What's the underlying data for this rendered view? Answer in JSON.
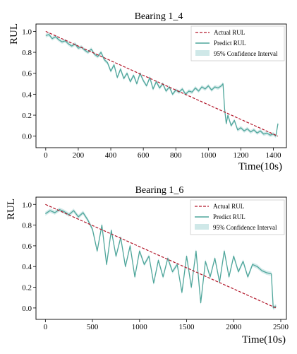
{
  "chart_data": [
    {
      "type": "line",
      "title": "Bearing 1_4",
      "xlabel": "Time(10s)",
      "ylabel": "RUL",
      "xlim": [
        -60,
        1480
      ],
      "ylim": [
        -0.11,
        1.07
      ],
      "xticks": [
        "0",
        "200",
        "400",
        "600",
        "800",
        "1000",
        "1200",
        "1400"
      ],
      "xtick_values": [
        0,
        200,
        400,
        600,
        800,
        1000,
        1200,
        1400
      ],
      "yticks": [
        "0.0",
        "0.2",
        "0.4",
        "0.6",
        "0.8",
        "1.0"
      ],
      "ytick_values": [
        0.0,
        0.2,
        0.4,
        0.6,
        0.8,
        1.0
      ],
      "legend": [
        "Actual RUL",
        "Predict RUL",
        "95% Confidence Interval"
      ],
      "legend_position": "top-right",
      "series": [
        {
          "name": "Actual RUL",
          "style": "dashed",
          "color": "#b2182b",
          "x": [
            0,
            1428
          ],
          "y": [
            1.0,
            0.0
          ]
        },
        {
          "name": "Predict RUL",
          "style": "solid",
          "color": "#4fa69b",
          "x": [
            0,
            20,
            40,
            60,
            80,
            100,
            120,
            140,
            160,
            180,
            200,
            220,
            240,
            260,
            280,
            300,
            320,
            340,
            360,
            380,
            400,
            420,
            440,
            460,
            480,
            500,
            520,
            540,
            560,
            580,
            600,
            620,
            640,
            660,
            680,
            700,
            720,
            740,
            760,
            780,
            800,
            820,
            840,
            860,
            880,
            900,
            920,
            940,
            960,
            980,
            1000,
            1020,
            1040,
            1060,
            1080,
            1090,
            1100,
            1110,
            1120,
            1140,
            1160,
            1180,
            1200,
            1220,
            1240,
            1260,
            1280,
            1300,
            1320,
            1340,
            1360,
            1380,
            1400,
            1415,
            1428
          ],
          "y": [
            0.96,
            0.97,
            0.93,
            0.95,
            0.92,
            0.9,
            0.91,
            0.88,
            0.86,
            0.88,
            0.84,
            0.85,
            0.82,
            0.8,
            0.83,
            0.78,
            0.76,
            0.8,
            0.73,
            0.7,
            0.62,
            0.68,
            0.56,
            0.64,
            0.55,
            0.6,
            0.52,
            0.58,
            0.5,
            0.6,
            0.53,
            0.48,
            0.56,
            0.45,
            0.52,
            0.46,
            0.5,
            0.43,
            0.47,
            0.4,
            0.44,
            0.42,
            0.45,
            0.4,
            0.43,
            0.42,
            0.46,
            0.43,
            0.47,
            0.45,
            0.48,
            0.44,
            0.47,
            0.46,
            0.48,
            0.5,
            0.26,
            0.12,
            0.2,
            0.1,
            0.15,
            0.06,
            0.08,
            0.05,
            0.07,
            0.04,
            0.06,
            0.03,
            0.05,
            0.02,
            0.03,
            0.01,
            0.02,
            0.0,
            0.12
          ]
        }
      ]
    },
    {
      "type": "line",
      "title": "Bearing 1_6",
      "xlabel": "Time(10s)",
      "ylabel": "RUL",
      "xlim": [
        -100,
        2560
      ],
      "ylim": [
        -0.11,
        1.07
      ],
      "xticks": [
        "0",
        "500",
        "1000",
        "1500",
        "2000",
        "2500"
      ],
      "xtick_values": [
        0,
        500,
        1000,
        1500,
        2000,
        2500
      ],
      "yticks": [
        "0.0",
        "0.2",
        "0.4",
        "0.6",
        "0.8",
        "1.0"
      ],
      "ytick_values": [
        0.0,
        0.2,
        0.4,
        0.6,
        0.8,
        1.0
      ],
      "legend": [
        "Actual RUL",
        "Predict RUL",
        "95% Confidence Interval"
      ],
      "legend_position": "top-right",
      "series": [
        {
          "name": "Actual RUL",
          "style": "dashed",
          "color": "#b2182b",
          "x": [
            0,
            2450
          ],
          "y": [
            1.0,
            0.0
          ]
        },
        {
          "name": "Predict RUL",
          "style": "solid",
          "color": "#4fa69b",
          "x": [
            0,
            50,
            100,
            150,
            200,
            250,
            300,
            350,
            400,
            450,
            500,
            550,
            600,
            650,
            700,
            750,
            800,
            850,
            900,
            950,
            1000,
            1050,
            1100,
            1150,
            1200,
            1250,
            1300,
            1350,
            1400,
            1450,
            1500,
            1550,
            1600,
            1650,
            1700,
            1750,
            1800,
            1850,
            1900,
            1950,
            2000,
            2050,
            2100,
            2150,
            2200,
            2250,
            2300,
            2350,
            2400,
            2420,
            2450
          ],
          "y": [
            0.91,
            0.94,
            0.92,
            0.95,
            0.93,
            0.9,
            0.94,
            0.88,
            0.92,
            0.85,
            0.76,
            0.55,
            0.8,
            0.42,
            0.75,
            0.5,
            0.68,
            0.4,
            0.6,
            0.3,
            0.55,
            0.42,
            0.5,
            0.24,
            0.46,
            0.3,
            0.48,
            0.35,
            0.42,
            0.15,
            0.5,
            0.2,
            0.55,
            0.05,
            0.45,
            0.3,
            0.48,
            0.25,
            0.55,
            0.3,
            0.5,
            0.35,
            0.45,
            0.3,
            0.42,
            0.4,
            0.36,
            0.34,
            0.33,
            0.0,
            0.02
          ]
        }
      ]
    }
  ]
}
